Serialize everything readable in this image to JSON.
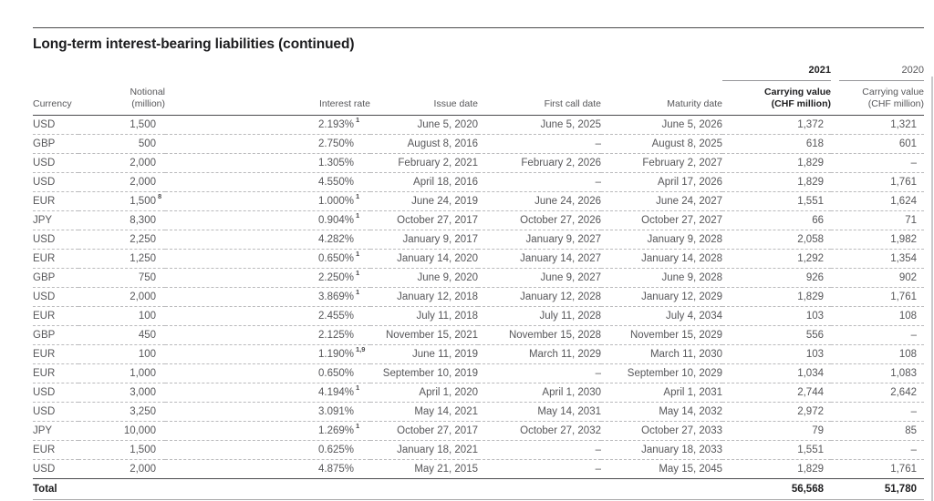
{
  "page": {
    "title": "Long-term interest-bearing liabilities (continued)"
  },
  "table": {
    "year_headers": [
      "2021",
      "2020"
    ],
    "columns": {
      "currency": "Currency",
      "notional_l1": "Notional",
      "notional_l2": "(million)",
      "interest_rate": "Interest rate",
      "issue_date": "Issue date",
      "first_call_date": "First call date",
      "maturity_date": "Maturity date",
      "cv2021_l1": "Carrying value",
      "cv2021_l2": "(CHF million)",
      "cv2020_l1": "Carrying value",
      "cv2020_l2": "(CHF million)"
    },
    "rows": [
      {
        "currency": "USD",
        "notional": "1,500",
        "notional_sup": "",
        "rate": "2.193%",
        "rate_sup": "1",
        "issue": "June 5, 2020",
        "first_call": "June 5, 2025",
        "maturity": "June 5, 2026",
        "cv2021": "1,372",
        "cv2020": "1,321"
      },
      {
        "currency": "GBP",
        "notional": "500",
        "notional_sup": "",
        "rate": "2.750%",
        "rate_sup": "",
        "issue": "August 8, 2016",
        "first_call": "–",
        "maturity": "August 8, 2025",
        "cv2021": "618",
        "cv2020": "601"
      },
      {
        "currency": "USD",
        "notional": "2,000",
        "notional_sup": "",
        "rate": "1.305%",
        "rate_sup": "",
        "issue": "February 2, 2021",
        "first_call": "February 2, 2026",
        "maturity": "February 2, 2027",
        "cv2021": "1,829",
        "cv2020": "–"
      },
      {
        "currency": "USD",
        "notional": "2,000",
        "notional_sup": "",
        "rate": "4.550%",
        "rate_sup": "",
        "issue": "April 18, 2016",
        "first_call": "–",
        "maturity": "April 17, 2026",
        "cv2021": "1,829",
        "cv2020": "1,761"
      },
      {
        "currency": "EUR",
        "notional": "1,500",
        "notional_sup": "8",
        "rate": "1.000%",
        "rate_sup": "1",
        "issue": "June 24, 2019",
        "first_call": "June 24, 2026",
        "maturity": "June 24, 2027",
        "cv2021": "1,551",
        "cv2020": "1,624"
      },
      {
        "currency": "JPY",
        "notional": "8,300",
        "notional_sup": "",
        "rate": "0.904%",
        "rate_sup": "1",
        "issue": "October 27, 2017",
        "first_call": "October 27, 2026",
        "maturity": "October 27, 2027",
        "cv2021": "66",
        "cv2020": "71"
      },
      {
        "currency": "USD",
        "notional": "2,250",
        "notional_sup": "",
        "rate": "4.282%",
        "rate_sup": "",
        "issue": "January 9, 2017",
        "first_call": "January 9, 2027",
        "maturity": "January 9, 2028",
        "cv2021": "2,058",
        "cv2020": "1,982"
      },
      {
        "currency": "EUR",
        "notional": "1,250",
        "notional_sup": "",
        "rate": "0.650%",
        "rate_sup": "1",
        "issue": "January 14, 2020",
        "first_call": "January 14, 2027",
        "maturity": "January 14, 2028",
        "cv2021": "1,292",
        "cv2020": "1,354"
      },
      {
        "currency": "GBP",
        "notional": "750",
        "notional_sup": "",
        "rate": "2.250%",
        "rate_sup": "1",
        "issue": "June 9, 2020",
        "first_call": "June 9, 2027",
        "maturity": "June 9, 2028",
        "cv2021": "926",
        "cv2020": "902"
      },
      {
        "currency": "USD",
        "notional": "2,000",
        "notional_sup": "",
        "rate": "3.869%",
        "rate_sup": "1",
        "issue": "January 12, 2018",
        "first_call": "January 12, 2028",
        "maturity": "January 12, 2029",
        "cv2021": "1,829",
        "cv2020": "1,761"
      },
      {
        "currency": "EUR",
        "notional": "100",
        "notional_sup": "",
        "rate": "2.455%",
        "rate_sup": "",
        "issue": "July 11, 2018",
        "first_call": "July 11, 2028",
        "maturity": "July 4, 2034",
        "cv2021": "103",
        "cv2020": "108"
      },
      {
        "currency": "GBP",
        "notional": "450",
        "notional_sup": "",
        "rate": "2.125%",
        "rate_sup": "",
        "issue": "November 15, 2021",
        "first_call": "November 15, 2028",
        "maturity": "November 15, 2029",
        "cv2021": "556",
        "cv2020": "–"
      },
      {
        "currency": "EUR",
        "notional": "100",
        "notional_sup": "",
        "rate": "1.190%",
        "rate_sup": "1,9",
        "issue": "June 11, 2019",
        "first_call": "March 11, 2029",
        "maturity": "March 11, 2030",
        "cv2021": "103",
        "cv2020": "108"
      },
      {
        "currency": "EUR",
        "notional": "1,000",
        "notional_sup": "",
        "rate": "0.650%",
        "rate_sup": "",
        "issue": "September 10, 2019",
        "first_call": "–",
        "maturity": "September 10, 2029",
        "cv2021": "1,034",
        "cv2020": "1,083"
      },
      {
        "currency": "USD",
        "notional": "3,000",
        "notional_sup": "",
        "rate": "4.194%",
        "rate_sup": "1",
        "issue": "April 1, 2020",
        "first_call": "April 1, 2030",
        "maturity": "April 1, 2031",
        "cv2021": "2,744",
        "cv2020": "2,642"
      },
      {
        "currency": "USD",
        "notional": "3,250",
        "notional_sup": "",
        "rate": "3.091%",
        "rate_sup": "",
        "issue": "May 14, 2021",
        "first_call": "May 14, 2031",
        "maturity": "May 14, 2032",
        "cv2021": "2,972",
        "cv2020": "–"
      },
      {
        "currency": "JPY",
        "notional": "10,000",
        "notional_sup": "",
        "rate": "1.269%",
        "rate_sup": "1",
        "issue": "October 27, 2017",
        "first_call": "October 27, 2032",
        "maturity": "October 27, 2033",
        "cv2021": "79",
        "cv2020": "85"
      },
      {
        "currency": "EUR",
        "notional": "1,500",
        "notional_sup": "",
        "rate": "0.625%",
        "rate_sup": "",
        "issue": "January 18, 2021",
        "first_call": "–",
        "maturity": "January 18, 2033",
        "cv2021": "1,551",
        "cv2020": "–"
      },
      {
        "currency": "USD",
        "notional": "2,000",
        "notional_sup": "",
        "rate": "4.875%",
        "rate_sup": "",
        "issue": "May 21, 2015",
        "first_call": "–",
        "maturity": "May 15, 2045",
        "cv2021": "1,829",
        "cv2020": "1,761"
      }
    ],
    "total": {
      "label": "Total",
      "cv2021": "56,568",
      "cv2020": "51,780"
    }
  }
}
